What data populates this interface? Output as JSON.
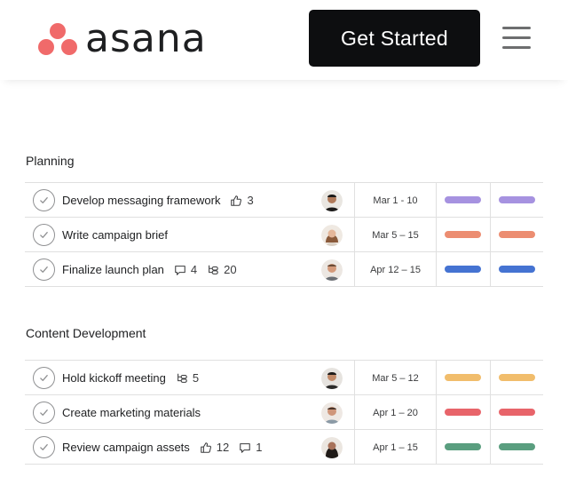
{
  "header": {
    "logo_text": "asana",
    "cta_label": "Get Started",
    "brand_color": "#f06a6a"
  },
  "sections": [
    {
      "title": "Planning",
      "rows": [
        {
          "task": "Develop messaging framework",
          "likes": "3",
          "comments": "",
          "subtasks": "",
          "date": "Mar 1 - 10",
          "color": "#a692e0"
        },
        {
          "task": "Write campaign brief",
          "likes": "",
          "comments": "",
          "subtasks": "",
          "date": "Mar 5 – 15",
          "color": "#ec8d71"
        },
        {
          "task": "Finalize launch plan",
          "likes": "",
          "comments": "4",
          "subtasks": "20",
          "date": "Apr 12 – 15",
          "color": "#4573d2"
        }
      ]
    },
    {
      "title": "Content Development",
      "rows": [
        {
          "task": "Hold kickoff meeting",
          "likes": "",
          "comments": "",
          "subtasks": "5",
          "date": "Mar 5 – 12",
          "color": "#f1bd6c"
        },
        {
          "task": "Create marketing materials",
          "likes": "",
          "comments": "",
          "subtasks": "",
          "date": "Apr 1 – 20",
          "color": "#e8646a"
        },
        {
          "task": "Review campaign assets",
          "likes": "12",
          "comments": "1",
          "subtasks": "",
          "date": "Apr 1 – 15",
          "color": "#5a9e7f"
        }
      ]
    }
  ],
  "icons": {
    "check": "check-circle-icon",
    "like": "thumbs-up-icon",
    "comment": "comment-icon",
    "subtask": "subtask-icon",
    "menu": "hamburger-menu-icon"
  }
}
